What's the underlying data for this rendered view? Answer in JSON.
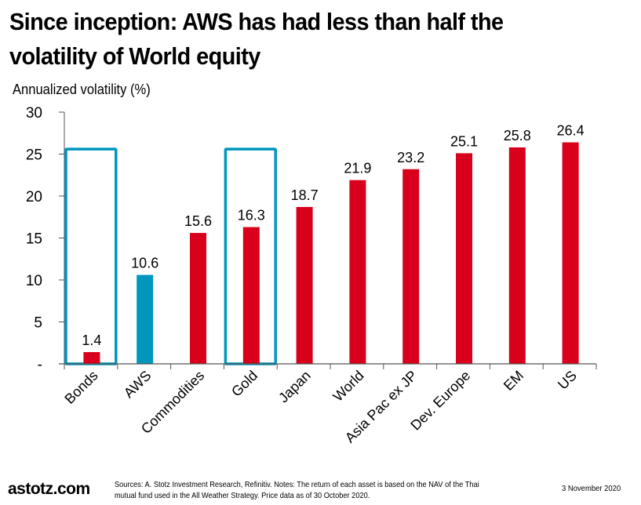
{
  "header": {
    "title_line1": "Since inception: AWS has had less than half the",
    "title_line2": "volatility of World equity"
  },
  "chart_data": {
    "type": "bar",
    "title": "Since inception: AWS has had less than half the volatility of World equity",
    "ylabel": "Annualized volatility (%)",
    "xlabel": "",
    "categories": [
      "Bonds",
      "AWS",
      "Commodities",
      "Gold",
      "Japan",
      "World",
      "Asia Pac ex JP",
      "Dev. Europe",
      "EM",
      "US"
    ],
    "values": [
      1.4,
      10.6,
      15.6,
      16.3,
      18.7,
      21.9,
      23.2,
      25.1,
      25.8,
      26.4
    ],
    "data_labels": [
      "1.4",
      "10.6",
      "15.6",
      "16.3",
      "18.7",
      "21.9",
      "23.2",
      "25.1",
      "25.8",
      "26.4"
    ],
    "bar_colors": [
      "#d9001b",
      "#0096bd",
      "#d9001b",
      "#d9001b",
      "#d9001b",
      "#d9001b",
      "#d9001b",
      "#d9001b",
      "#d9001b",
      "#d9001b"
    ],
    "highlighted_categories": [
      "Bonds",
      "Gold"
    ],
    "highlight_box_top_value": 25.6,
    "highlight_color": "#0096bd",
    "ylim": [
      0,
      30
    ],
    "yticks": [
      0,
      5,
      10,
      15,
      20,
      25,
      30
    ],
    "ytick_labels": [
      "-",
      "5",
      "10",
      "15",
      "20",
      "25",
      "30"
    ],
    "grid": false,
    "legend": "none"
  },
  "footer": {
    "brand": "astotz.com",
    "notes_line1": "Sources: A. Stotz Investment Research, Refinitiv. Notes: The return of each asset is based on the NAV of the Thai",
    "notes_line2": "mutual fund used in the All Weather Strategy. Price data as of 30 October 2020.",
    "date": "3 November 2020"
  }
}
